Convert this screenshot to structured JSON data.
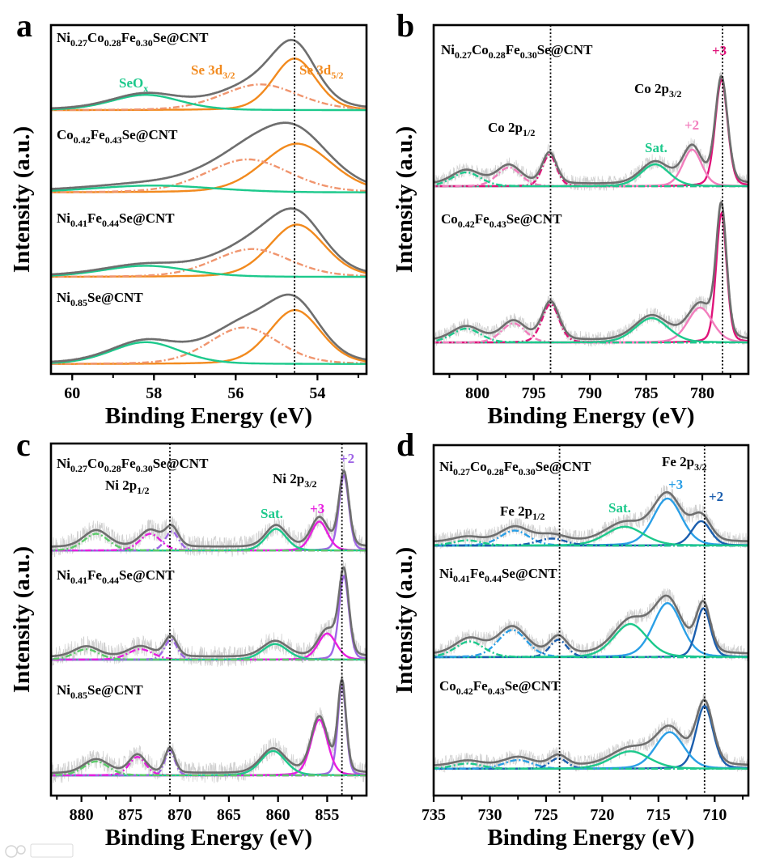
{
  "figure": {
    "colors": {
      "envelope": "#6e6e6e",
      "raw": "#cfcfcf",
      "frame": "#000000"
    }
  },
  "chart_data": [
    {
      "panel": "a",
      "type": "line",
      "xlabel": "Binding Energy (eV)",
      "ylabel": "Intensity (a.u.)",
      "xlim": [
        60.52,
        52.8
      ],
      "xticks": [
        60,
        58,
        56,
        54
      ],
      "xtick_labels": [
        "60",
        "58",
        "56",
        "54"
      ],
      "minor_step": 1,
      "ylim": [
        0,
        100
      ],
      "grid": false,
      "reference_lines": [
        54.56
      ],
      "annotations": [
        {
          "text": "Se 3d3/2",
          "color": "#F28A1E"
        },
        {
          "text": "Se 3d5/2",
          "color": "#F28A1E"
        },
        {
          "text": "SeOx",
          "color": "#1DC98C"
        }
      ],
      "series": [
        {
          "name": "Ni0.27Co0.28Fe0.30Se@CNT",
          "offset": 75.6,
          "background": 0.2,
          "components": [
            {
              "name": "Se 3d5/2",
              "center": 54.56,
              "height": 14.8,
              "fwhm": 1.25,
              "color": "#F28A1E",
              "style": "solid"
            },
            {
              "name": "Se 3d3/2",
              "center": 55.4,
              "height": 7.4,
              "fwhm": 2.2,
              "color": "#F0956E",
              "style": "dashdot"
            },
            {
              "name": "SeOx",
              "center": 58.2,
              "height": 4.4,
              "fwhm": 2.0,
              "color": "#1DC98C",
              "style": "solid"
            }
          ]
        },
        {
          "name": "Co0.42Fe0.43Se@CNT",
          "offset": 52.0,
          "background": 0.3,
          "components": [
            {
              "name": "Se 3d5/2",
              "center": 54.5,
              "height": 14.0,
              "fwhm": 2.0,
              "color": "#F28A1E",
              "style": "solid"
            },
            {
              "name": "Se 3d3/2",
              "center": 55.7,
              "height": 9.5,
              "fwhm": 2.4,
              "color": "#F0956E",
              "style": "dashdot"
            },
            {
              "name": "SeOx",
              "center": 58.0,
              "height": 2.0,
              "fwhm": 3.5,
              "color": "#1DC98C",
              "style": "solid"
            }
          ]
        },
        {
          "name": "Ni0.41Fe0.44Se@CNT",
          "offset": 27.8,
          "background": 0.2,
          "components": [
            {
              "name": "Se 3d5/2",
              "center": 54.5,
              "height": 15.0,
              "fwhm": 1.6,
              "color": "#F28A1E",
              "style": "solid"
            },
            {
              "name": "Se 3d3/2",
              "center": 55.6,
              "height": 8.0,
              "fwhm": 2.2,
              "color": "#F0956E",
              "style": "dashdot"
            },
            {
              "name": "SeOx",
              "center": 58.2,
              "height": 3.2,
              "fwhm": 2.5,
              "color": "#1DC98C",
              "style": "solid"
            }
          ]
        },
        {
          "name": "Ni0.85Se@CNT",
          "offset": 2.8,
          "background": 0.2,
          "components": [
            {
              "name": "Se 3d5/2",
              "center": 54.55,
              "height": 15.5,
              "fwhm": 1.5,
              "color": "#F28A1E",
              "style": "solid"
            },
            {
              "name": "Se 3d3/2",
              "center": 55.8,
              "height": 10.5,
              "fwhm": 2.0,
              "color": "#F0956E",
              "style": "dashdot"
            },
            {
              "name": "SeOx",
              "center": 58.2,
              "height": 6.3,
              "fwhm": 2.0,
              "color": "#1DC98C",
              "style": "solid"
            }
          ]
        }
      ]
    },
    {
      "panel": "b",
      "type": "line",
      "xlabel": "Binding Energy (eV)",
      "ylabel": "Intensity (a.u.)",
      "xlim": [
        803.9,
        775.9
      ],
      "xticks": [
        800,
        795,
        790,
        785,
        780
      ],
      "xtick_labels": [
        "800",
        "795",
        "790",
        "785",
        "780"
      ],
      "minor_step": 2.5,
      "ylim": [
        0,
        100
      ],
      "grid": false,
      "reference_lines": [
        793.5,
        778.2
      ],
      "annotations": [
        {
          "text": "Co 2p1/2",
          "color": "#000000"
        },
        {
          "text": "Co 2p3/2",
          "color": "#000000"
        },
        {
          "text": "Sat.",
          "color": "#1DC98C"
        },
        {
          "text": "+2",
          "color": "#F27DBD"
        },
        {
          "text": "+3",
          "color": "#E0137A"
        }
      ],
      "series": [
        {
          "name": "Ni0.27Co0.28Fe0.30Se@CNT",
          "offset": 53.8,
          "background": 0.6,
          "components": [
            {
              "name": "Co3+ 2p3/2",
              "center": 778.3,
              "height": 30.5,
              "fwhm": 1.3,
              "color": "#E0137A",
              "style": "solid"
            },
            {
              "name": "Co2+ 2p3/2",
              "center": 780.9,
              "height": 10.5,
              "fwhm": 2.0,
              "color": "#F27DBD",
              "style": "solid"
            },
            {
              "name": "Sat.",
              "center": 784.2,
              "height": 6.3,
              "fwhm": 3.0,
              "color": "#1DC98C",
              "style": "solid"
            },
            {
              "name": "Co3+ 2p1/2",
              "center": 793.6,
              "height": 9.0,
              "fwhm": 1.5,
              "color": "#E0137A",
              "style": "dashdot"
            },
            {
              "name": "Co2+ 2p1/2",
              "center": 797.2,
              "height": 5.4,
              "fwhm": 2.5,
              "color": "#F27DBD",
              "style": "dashdot"
            },
            {
              "name": "Sat.",
              "center": 801.0,
              "height": 4.0,
              "fwhm": 3.0,
              "color": "#1DC98C",
              "style": "dashdot"
            }
          ]
        },
        {
          "name": "Co0.42Fe0.43Se@CNT",
          "offset": 9.0,
          "background": 0.6,
          "components": [
            {
              "name": "Co3+ 2p3/2",
              "center": 778.3,
              "height": 37.0,
              "fwhm": 1.1,
              "color": "#E0137A",
              "style": "solid"
            },
            {
              "name": "Co2+ 2p3/2",
              "center": 780.2,
              "height": 10.0,
              "fwhm": 2.6,
              "color": "#F27DBD",
              "style": "solid"
            },
            {
              "name": "Sat.",
              "center": 784.5,
              "height": 7.0,
              "fwhm": 3.5,
              "color": "#1DC98C",
              "style": "solid"
            },
            {
              "name": "Co3+ 2p1/2",
              "center": 793.5,
              "height": 11.0,
              "fwhm": 1.8,
              "color": "#E0137A",
              "style": "dashdot"
            },
            {
              "name": "Co2+ 2p1/2",
              "center": 796.8,
              "height": 5.5,
              "fwhm": 2.5,
              "color": "#F27DBD",
              "style": "dashdot"
            },
            {
              "name": "Sat.",
              "center": 801.0,
              "height": 4.0,
              "fwhm": 3.0,
              "color": "#1DC98C",
              "style": "dashdot"
            }
          ]
        }
      ]
    },
    {
      "panel": "c",
      "type": "line",
      "xlabel": "Binding Energy (eV)",
      "ylabel": "Intensity (a.u.)",
      "xlim": [
        883.1,
        851.0
      ],
      "xticks": [
        880,
        875,
        870,
        865,
        860,
        855
      ],
      "xtick_labels": [
        "880",
        "875",
        "870",
        "865",
        "860",
        "855"
      ],
      "minor_step": 2.5,
      "ylim": [
        0,
        101
      ],
      "grid": false,
      "reference_lines": [
        871.0,
        853.5
      ],
      "annotations": [
        {
          "text": "Ni 2p1/2",
          "color": "#000000"
        },
        {
          "text": "Ni 2p3/2",
          "color": "#000000"
        },
        {
          "text": "Sat.",
          "color": "#1DC98C"
        },
        {
          "text": "+3",
          "color": "#E81EE0"
        },
        {
          "text": "+2",
          "color": "#A066E6"
        }
      ],
      "series": [
        {
          "name": "Ni0.27Co0.28Fe0.30Se@CNT",
          "offset": 70.3,
          "background": 1.0,
          "components": [
            {
              "name": "Ni2+ 2p3/2",
              "center": 853.3,
              "height": 21.5,
              "fwhm": 1.2,
              "color": "#A066E6",
              "style": "solid"
            },
            {
              "name": "Ni3+ 2p3/2",
              "center": 855.8,
              "height": 8.3,
              "fwhm": 2.0,
              "color": "#E81EE0",
              "style": "solid"
            },
            {
              "name": "Sat.",
              "center": 860.2,
              "height": 6.2,
              "fwhm": 2.5,
              "color": "#1DC98C",
              "style": "solid"
            },
            {
              "name": "Ni2+ 2p1/2",
              "center": 870.8,
              "height": 5.5,
              "fwhm": 1.6,
              "color": "#A066E6",
              "style": "dashdot"
            },
            {
              "name": "Ni3+ 2p1/2",
              "center": 873.0,
              "height": 4.8,
              "fwhm": 2.5,
              "color": "#E81EE0",
              "style": "dashdot"
            },
            {
              "name": "Sat.",
              "center": 878.5,
              "height": 4.8,
              "fwhm": 3.0,
              "color": "#5CCB6A",
              "style": "dashdot"
            }
          ]
        },
        {
          "name": "Ni0.41Fe0.44Se@CNT",
          "offset": 39.0,
          "background": 0.8,
          "components": [
            {
              "name": "Ni2+ 2p3/2",
              "center": 853.3,
              "height": 24.0,
              "fwhm": 1.2,
              "color": "#A066E6",
              "style": "solid"
            },
            {
              "name": "Ni3+ 2p3/2",
              "center": 855.0,
              "height": 7.5,
              "fwhm": 2.2,
              "color": "#E81EE0",
              "style": "solid"
            },
            {
              "name": "Sat.",
              "center": 860.3,
              "height": 4.5,
              "fwhm": 3.0,
              "color": "#1DC98C",
              "style": "solid"
            },
            {
              "name": "Ni2+ 2p1/2",
              "center": 870.9,
              "height": 5.8,
              "fwhm": 1.5,
              "color": "#A066E6",
              "style": "dashdot"
            },
            {
              "name": "Ni3+ 2p1/2",
              "center": 874.0,
              "height": 3.0,
              "fwhm": 3.0,
              "color": "#E81EE0",
              "style": "dashdot"
            },
            {
              "name": "Sat.",
              "center": 879.5,
              "height": 3.0,
              "fwhm": 3.0,
              "color": "#5CCB6A",
              "style": "dashdot"
            }
          ]
        },
        {
          "name": "Ni0.85Se@CNT",
          "offset": 5.8,
          "background": 0.6,
          "components": [
            {
              "name": "Ni2+ 2p3/2",
              "center": 853.5,
              "height": 26.0,
              "fwhm": 1.0,
              "color": "#A066E6",
              "style": "solid"
            },
            {
              "name": "Ni3+ 2p3/2",
              "center": 855.8,
              "height": 16.0,
              "fwhm": 2.0,
              "color": "#E81EE0",
              "style": "solid"
            },
            {
              "name": "Sat.",
              "center": 860.5,
              "height": 7.0,
              "fwhm": 3.0,
              "color": "#1DC98C",
              "style": "solid"
            },
            {
              "name": "Ni2+ 2p1/2",
              "center": 871.0,
              "height": 7.2,
              "fwhm": 1.2,
              "color": "#A066E6",
              "style": "dashdot"
            },
            {
              "name": "Ni3+ 2p1/2",
              "center": 874.3,
              "height": 5.3,
              "fwhm": 2.0,
              "color": "#E81EE0",
              "style": "dashdot"
            },
            {
              "name": "Sat.",
              "center": 878.5,
              "height": 4.0,
              "fwhm": 3.0,
              "color": "#5CCB6A",
              "style": "dashdot"
            }
          ]
        }
      ]
    },
    {
      "panel": "d",
      "type": "line",
      "xlabel": "Binding Energy (eV)",
      "ylabel": "Intensity (a.u.)",
      "xlim": [
        735.0,
        707.0
      ],
      "xticks": [
        735,
        730,
        725,
        720,
        715,
        710
      ],
      "xtick_labels": [
        "735",
        "730",
        "725",
        "720",
        "715",
        "710"
      ],
      "minor_step": 2.5,
      "ylim": [
        0,
        100.5
      ],
      "grid": false,
      "reference_lines": [
        723.8,
        710.9
      ],
      "annotations": [
        {
          "text": "Fe 2p1/2",
          "color": "#000000"
        },
        {
          "text": "Fe 2p3/2",
          "color": "#000000"
        },
        {
          "text": "+3",
          "color": "#2A9FE6"
        },
        {
          "text": "Sat.",
          "color": "#1DC98C"
        },
        {
          "text": "+2",
          "color": "#1B5EAE"
        }
      ],
      "series": [
        {
          "name": "Ni0.27Co0.28Fe0.30Se@CNT",
          "offset": 71.7,
          "background": 1.0,
          "components": [
            {
              "name": "Fe3+ 2p3/2",
              "center": 714.2,
              "height": 13.5,
              "fwhm": 3.0,
              "color": "#2A9FE6",
              "style": "solid"
            },
            {
              "name": "Fe2+ 2p3/2",
              "center": 711.2,
              "height": 7.0,
              "fwhm": 2.0,
              "color": "#1B5EAE",
              "style": "solid"
            },
            {
              "name": "Sat.",
              "center": 718.0,
              "height": 5.4,
              "fwhm": 4.0,
              "color": "#1DC98C",
              "style": "solid"
            },
            {
              "name": "Fe3+ 2p1/2",
              "center": 727.8,
              "height": 4.3,
              "fwhm": 3.0,
              "color": "#2A9FE6",
              "style": "dashdot"
            },
            {
              "name": "Fe2+ 2p1/2",
              "center": 724.5,
              "height": 2.0,
              "fwhm": 3.0,
              "color": "#1B5EAE",
              "style": "dashdot"
            },
            {
              "name": "Sat.",
              "center": 732.0,
              "height": 1.5,
              "fwhm": 3.0,
              "color": "#1DC98C",
              "style": "dashdot"
            }
          ]
        },
        {
          "name": "Ni0.41Fe0.44Se@CNT",
          "offset": 39.7,
          "background": 0.8,
          "components": [
            {
              "name": "Fe3+ 2p3/2",
              "center": 714.2,
              "height": 15.5,
              "fwhm": 3.0,
              "color": "#2A9FE6",
              "style": "solid"
            },
            {
              "name": "Fe2+ 2p3/2",
              "center": 711.0,
              "height": 14.0,
              "fwhm": 1.5,
              "color": "#1B5EAE",
              "style": "solid"
            },
            {
              "name": "Sat.",
              "center": 717.5,
              "height": 9.5,
              "fwhm": 3.5,
              "color": "#1DC98C",
              "style": "solid"
            },
            {
              "name": "Fe2+ 2p1/2",
              "center": 723.9,
              "height": 5.0,
              "fwhm": 1.8,
              "color": "#1B5EAE",
              "style": "dashdot"
            },
            {
              "name": "Fe3+ 2p1/2",
              "center": 728.0,
              "height": 7.8,
              "fwhm": 3.0,
              "color": "#2A9FE6",
              "style": "dashdot"
            },
            {
              "name": "Sat.",
              "center": 731.8,
              "height": 4.5,
              "fwhm": 3.0,
              "color": "#1DC98C",
              "style": "dashdot"
            }
          ]
        },
        {
          "name": "Co0.42Fe0.43Se@CNT",
          "offset": 7.7,
          "background": 0.8,
          "components": [
            {
              "name": "Fe2+ 2p3/2",
              "center": 710.9,
              "height": 18.0,
              "fwhm": 1.8,
              "color": "#1B5EAE",
              "style": "solid"
            },
            {
              "name": "Fe3+ 2p3/2",
              "center": 714.0,
              "height": 10.5,
              "fwhm": 3.0,
              "color": "#2A9FE6",
              "style": "solid"
            },
            {
              "name": "Sat.",
              "center": 717.5,
              "height": 5.0,
              "fwhm": 4.0,
              "color": "#1DC98C",
              "style": "solid"
            },
            {
              "name": "Fe2+ 2p1/2",
              "center": 723.9,
              "height": 3.0,
              "fwhm": 1.8,
              "color": "#1B5EAE",
              "style": "dashdot"
            },
            {
              "name": "Fe3+ 2p1/2",
              "center": 727.5,
              "height": 2.5,
              "fwhm": 3.0,
              "color": "#2A9FE6",
              "style": "dashdot"
            },
            {
              "name": "Sat.",
              "center": 732.0,
              "height": 1.5,
              "fwhm": 3.0,
              "color": "#1DC98C",
              "style": "dashdot"
            }
          ]
        }
      ]
    }
  ]
}
